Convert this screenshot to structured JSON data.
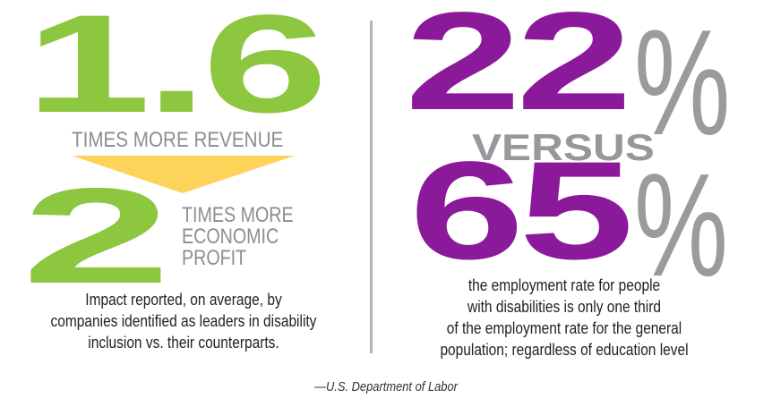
{
  "left": {
    "big_number_top": "1.6",
    "label_top": "TIMES MORE REVENUE",
    "big_number_bottom": "2",
    "label_bottom_lines": [
      "TIMES MORE",
      "ECONOMIC",
      "PROFIT"
    ],
    "caption_lines": [
      "Impact reported, on average, by",
      "companies identified as leaders in disability",
      "inclusion vs. their counterparts."
    ]
  },
  "right": {
    "value_top": "22",
    "value_bottom": "65",
    "percent_sign": "%",
    "versus": "VERSUS",
    "caption_lines": [
      "the employment rate for people",
      "with disabilities is only one third",
      "of the employment rate for the general",
      "population; regardless of education level"
    ]
  },
  "source": "—U.S. Department of Labor",
  "colors": {
    "green": "#8dc63f",
    "purple": "#8b1a9a",
    "gray": "#8a8d93",
    "arrow_yellow": "#fdd35a",
    "divider": "#b4b4b4"
  }
}
